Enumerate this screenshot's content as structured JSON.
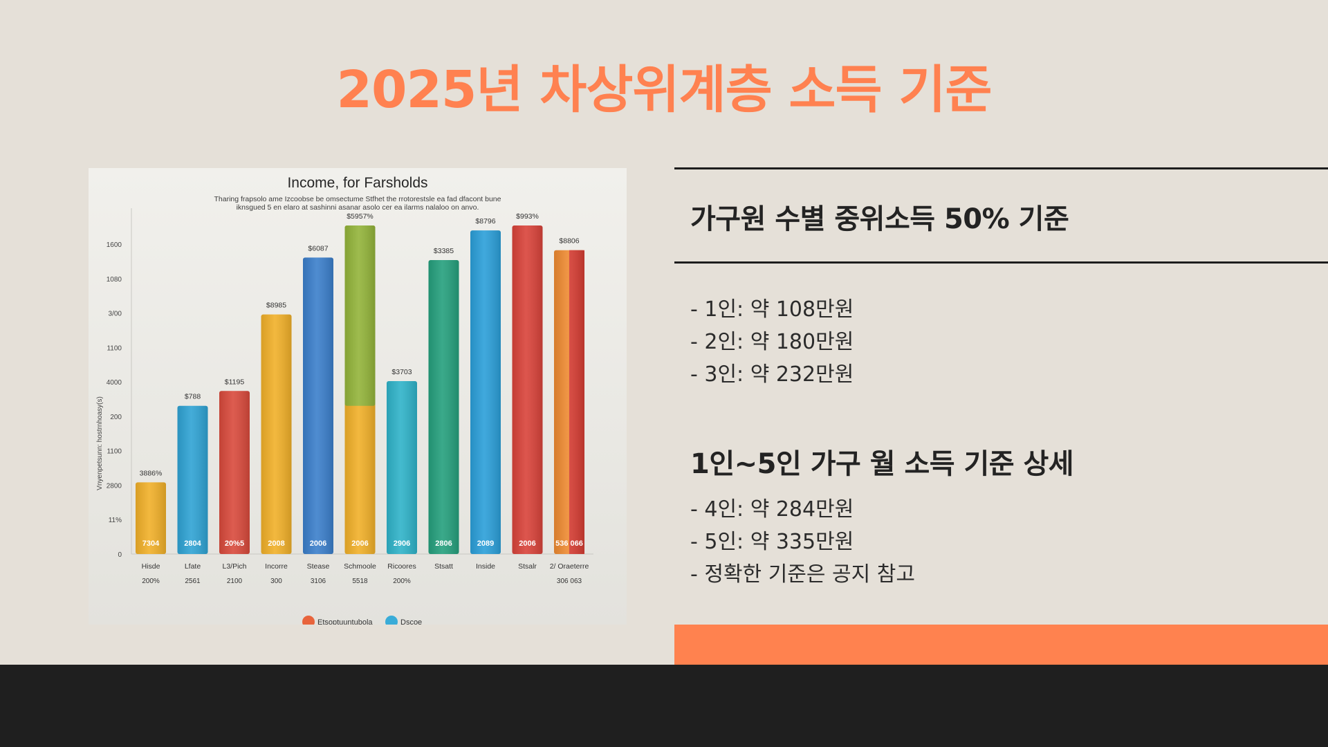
{
  "slide": {
    "title": "2025년 차상위계층 소득 기준",
    "section1": {
      "heading": "가구원 수별 중위소득 50% 기준",
      "items": [
        "- 1인: 약 108만원",
        "- 2인: 약 180만원",
        "- 3인: 약 232만원"
      ]
    },
    "section2": {
      "heading": "1인~5인 가구 월 소득 기준 상세",
      "items": [
        "- 4인: 약 284만원",
        "- 5인: 약 335만원",
        "- 정확한 기준은 공지 참고"
      ]
    }
  },
  "colors": {
    "accent": "#ff8150",
    "dark_band": "#1f1f1f",
    "background": "#e5e0d8"
  },
  "chart_data": {
    "type": "bar",
    "title": "Income, for Farsholds",
    "subtitle": [
      "Tharing frapsolo ame Izcoobse be omsectume Stfhet the rrotorestsle ea fad dfacont bune",
      "iknsgued 5 en elaro at sashinni asanar asolo cer ea ilarms nalaloo on anvo."
    ],
    "ylabel": "Vnyenpetsunn: hostrnhoasy(s)",
    "y_ticks": [
      "0",
      "11%",
      "2800",
      "1100",
      "200",
      "4000",
      "1100",
      "3/00",
      "1080",
      "1600"
    ],
    "categories": [
      "Hisde",
      "Lfate",
      "L3/Pich",
      "Incorre",
      "Stease",
      "Schmoole",
      "Ricoores",
      "Stsatt",
      "Inside",
      "Stsalr",
      "2/ Oraeterre"
    ],
    "category_sub": [
      "200%",
      "2561",
      "2100",
      "300",
      "3106",
      "5518",
      "200%",
      "",
      "",
      "",
      "306 063"
    ],
    "values": [
      145,
      300,
      330,
      485,
      600,
      665,
      350,
      595,
      655,
      665,
      615
    ],
    "split_values": [
      null,
      null,
      null,
      null,
      null,
      300,
      null,
      null,
      null,
      null,
      null
    ],
    "value_labels": [
      "3886%",
      "$788",
      "$1195",
      "$8985",
      "$6087",
      "$5957%",
      "$3703",
      "$3385",
      "$8796",
      "$993%",
      "$8806"
    ],
    "inner_labels": [
      "7304",
      "2804",
      "20%5",
      "2008",
      "2006",
      "2006",
      "2906",
      "2806",
      "2089",
      "2006",
      "536 066"
    ],
    "colors": [
      "#f1b029",
      "#2fa3d4",
      "#d94a3c",
      "#f1b029",
      "#3b7fcb",
      "#f1b029",
      "#2fb3c9",
      "#25a07d",
      "#2b9fd9",
      "#d9433a",
      "#ee8a31"
    ],
    "split_colors": [
      null,
      null,
      null,
      null,
      null,
      "#93b43a",
      null,
      null,
      null,
      null,
      null
    ],
    "right_half_colors": [
      null,
      null,
      null,
      null,
      null,
      null,
      null,
      null,
      null,
      null,
      "#d63d33"
    ],
    "legend": [
      {
        "name": "Etsoptuuntubola",
        "color": "#e8643c"
      },
      {
        "name": "Dscoe",
        "color": "#39acd8"
      }
    ],
    "ylim": [
      0,
      700
    ],
    "legend_position": "bottom"
  }
}
